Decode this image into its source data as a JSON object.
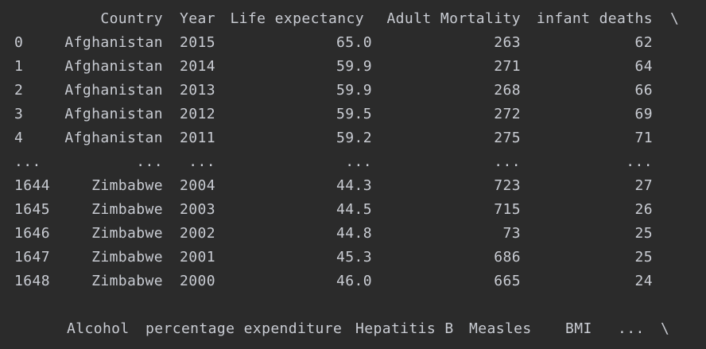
{
  "header": {
    "country": "Country",
    "year": "Year",
    "life_expectancy": "Life expectancy",
    "adult_mortality": "Adult Mortality",
    "infant_deaths": "infant deaths",
    "continuation": "\\"
  },
  "rows": [
    {
      "index": "0",
      "country": "Afghanistan",
      "year": "2015",
      "life": "65.0",
      "adult": "263",
      "infant": "62"
    },
    {
      "index": "1",
      "country": "Afghanistan",
      "year": "2014",
      "life": "59.9",
      "adult": "271",
      "infant": "64"
    },
    {
      "index": "2",
      "country": "Afghanistan",
      "year": "2013",
      "life": "59.9",
      "adult": "268",
      "infant": "66"
    },
    {
      "index": "3",
      "country": "Afghanistan",
      "year": "2012",
      "life": "59.5",
      "adult": "272",
      "infant": "69"
    },
    {
      "index": "4",
      "country": "Afghanistan",
      "year": "2011",
      "life": "59.2",
      "adult": "275",
      "infant": "71"
    },
    {
      "index": "...",
      "country": "...",
      "year": "...",
      "life": "...",
      "adult": "...",
      "infant": "..."
    },
    {
      "index": "1644",
      "country": "Zimbabwe",
      "year": "2004",
      "life": "44.3",
      "adult": "723",
      "infant": "27"
    },
    {
      "index": "1645",
      "country": "Zimbabwe",
      "year": "2003",
      "life": "44.5",
      "adult": "715",
      "infant": "26"
    },
    {
      "index": "1646",
      "country": "Zimbabwe",
      "year": "2002",
      "life": "44.8",
      "adult": "73",
      "infant": "25"
    },
    {
      "index": "1647",
      "country": "Zimbabwe",
      "year": "2001",
      "life": "45.3",
      "adult": "686",
      "infant": "25"
    },
    {
      "index": "1648",
      "country": "Zimbabwe",
      "year": "2000",
      "life": "46.0",
      "adult": "665",
      "infant": "24"
    }
  ],
  "footer_header": {
    "alcohol": "Alcohol",
    "percentage_expenditure": "percentage expenditure",
    "hepatitis_b": "Hepatitis B",
    "measles": "Measles",
    "bmi": "BMI",
    "ellipsis": "...",
    "continuation": "\\"
  },
  "colors": {
    "background": "#2b2b2b",
    "text": "#c9ccd3"
  }
}
